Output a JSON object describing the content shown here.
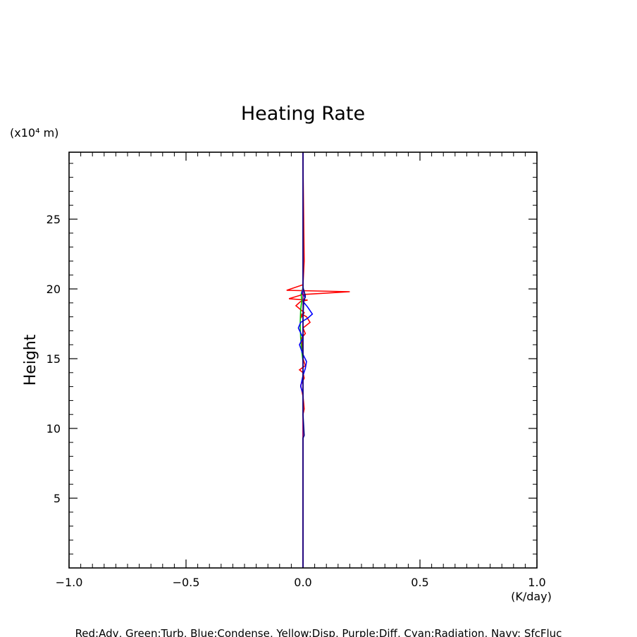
{
  "chart_data": {
    "type": "line",
    "title": "Heating Rate",
    "xlabel": "(K/day)",
    "ylabel": "Height",
    "y_unit": "(x10⁴ m)",
    "xlim": [
      -1.0,
      1.0
    ],
    "ylim": [
      0,
      29.8
    ],
    "x_ticks": [
      -1.0,
      -0.5,
      0.0,
      0.5,
      1.0
    ],
    "x_tick_labels": [
      "−1.0",
      "−0.5",
      "0.0",
      "0.5",
      "1.0"
    ],
    "y_ticks": [
      5,
      10,
      15,
      20,
      25
    ],
    "y_tick_labels": [
      "5",
      "10",
      "15",
      "20",
      "25"
    ],
    "legend_text": "Red:Adv, Green:Turb, Blue:Condense, Yellow:Disp, Purple:Diff, Cyan:Radiation, Navy: SfcFluc",
    "series": [
      {
        "name": "Adv",
        "color": "#ff0000",
        "x": [
          0.0,
          0.0,
          0.005,
          0.003,
          0.0,
          -0.01,
          0.005,
          0.0,
          -0.015,
          0.01,
          0.0,
          -0.005,
          0.01,
          0.0,
          0.03,
          0.015,
          -0.005,
          -0.01,
          0.005,
          -0.03,
          -0.01,
          0.02,
          -0.06,
          0.0,
          0.2,
          -0.07,
          0.0,
          0.005,
          0.0,
          0.0
        ],
        "y": [
          0.0,
          11.0,
          11.4,
          11.8,
          12.3,
          13.1,
          13.6,
          14.0,
          14.2,
          14.5,
          15.0,
          16.5,
          16.8,
          17.2,
          17.6,
          18.0,
          18.2,
          17.9,
          18.3,
          18.8,
          19.1,
          19.2,
          19.3,
          19.6,
          19.8,
          19.9,
          20.3,
          22.0,
          29.0,
          29.8
        ]
      },
      {
        "name": "Turb",
        "color": "#00c000",
        "x": [
          0.0,
          -0.005,
          -0.01,
          -0.012,
          -0.01,
          -0.005,
          -0.008,
          -0.003,
          0.0,
          0.0
        ],
        "y": [
          14.8,
          15.5,
          16.5,
          17.5,
          18.5,
          19.2,
          19.6,
          19.9,
          20.1,
          20.3
        ]
      },
      {
        "name": "Condense",
        "color": "#0000ff",
        "x": [
          0.0,
          -0.01,
          0.0,
          0.01,
          0.015,
          0.0,
          -0.015,
          0.0,
          -0.02,
          -0.01,
          0.02,
          0.04,
          0.02,
          0.0,
          0.01,
          -0.005,
          0.0
        ],
        "y": [
          12.5,
          13.0,
          13.8,
          14.3,
          14.8,
          15.3,
          16.0,
          16.5,
          17.2,
          17.6,
          17.9,
          18.2,
          18.7,
          19.1,
          19.4,
          19.7,
          20.0
        ]
      },
      {
        "name": "Diff",
        "color": "#800080",
        "x": [
          0.0,
          0.0,
          0.0,
          0.0
        ],
        "y": [
          0.0,
          10.0,
          20.0,
          29.8
        ]
      },
      {
        "name": "SfcFluc",
        "color": "#000080",
        "x": [
          0.0,
          0.0,
          0.005,
          0.0,
          0.0,
          0.0,
          0.003,
          0.01,
          0.005,
          0.0,
          0.0
        ],
        "y": [
          0.0,
          9.3,
          9.5,
          11.0,
          12.7,
          18.0,
          19.1,
          19.5,
          19.8,
          20.1,
          29.8
        ]
      }
    ]
  }
}
